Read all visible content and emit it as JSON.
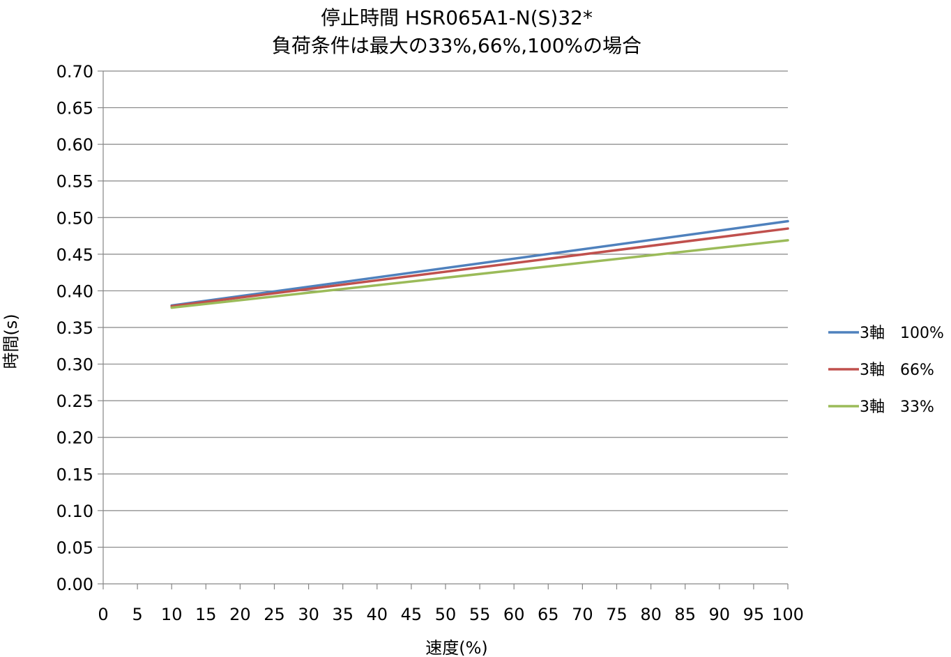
{
  "chart_data": {
    "type": "line",
    "title": "停止時間 HSR065A1-N(S)32*",
    "subtitle": "負荷条件は最大の33%,66%,100%の場合",
    "xlabel": "速度(%)",
    "ylabel": "時間(s)",
    "xlim": [
      0,
      100
    ],
    "ylim": [
      0,
      0.7
    ],
    "x_ticks": [
      "0",
      "5",
      "10",
      "15",
      "20",
      "25",
      "30",
      "35",
      "40",
      "45",
      "50",
      "55",
      "60",
      "65",
      "70",
      "75",
      "80",
      "85",
      "90",
      "95",
      "100"
    ],
    "y_ticks": [
      "0.00",
      "0.05",
      "0.10",
      "0.15",
      "0.20",
      "0.25",
      "0.30",
      "0.35",
      "0.40",
      "0.45",
      "0.50",
      "0.55",
      "0.60",
      "0.65",
      "0.70"
    ],
    "grid": "horizontal",
    "legend_position": "right",
    "series": [
      {
        "name": "3軸　100%",
        "color": "#4F81BD",
        "x": [
          10,
          100
        ],
        "y": [
          0.38,
          0.495
        ]
      },
      {
        "name": "3軸　66%",
        "color": "#C0504D",
        "x": [
          10,
          100
        ],
        "y": [
          0.379,
          0.485
        ]
      },
      {
        "name": "3軸　33%",
        "color": "#9BBB59",
        "x": [
          10,
          100
        ],
        "y": [
          0.377,
          0.469
        ]
      }
    ]
  }
}
